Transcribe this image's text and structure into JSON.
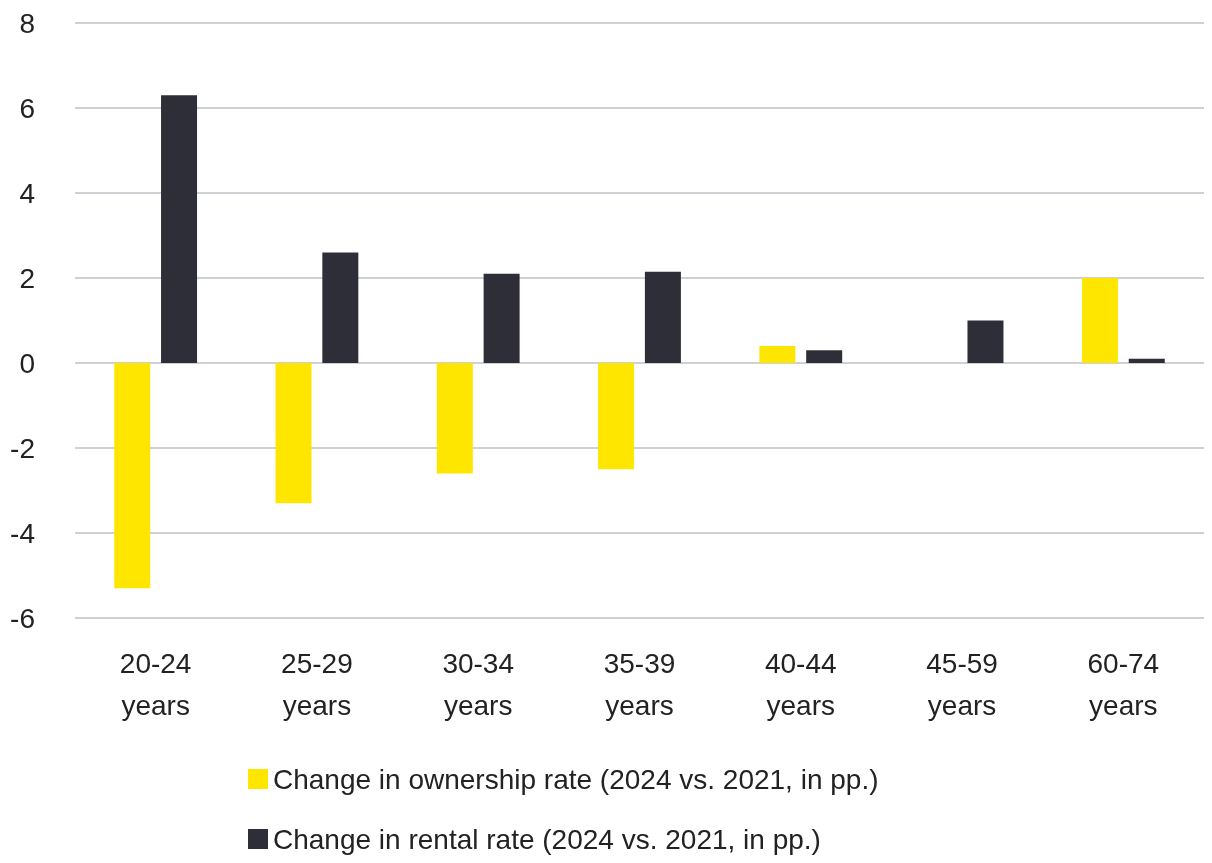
{
  "chart_data": {
    "type": "bar",
    "categories": [
      "20-24\nyears",
      "25-29\nyears",
      "30-34\nyears",
      "35-39\nyears",
      "40-44\nyears",
      "45-59\nyears",
      "60-74\nyears"
    ],
    "series": [
      {
        "name": "Change in ownership rate (2024 vs. 2021, in pp.)",
        "color": "#ffe600",
        "values": [
          -5.3,
          -3.3,
          -2.6,
          -2.5,
          0.4,
          0,
          2.0
        ]
      },
      {
        "name": "Change in rental rate (2024 vs. 2021, in pp.)",
        "color": "#2e2e38",
        "values": [
          6.3,
          2.6,
          2.1,
          2.15,
          0.3,
          1.0,
          0.1
        ]
      }
    ],
    "ylim": [
      -6,
      8
    ],
    "yticks": [
      -6,
      -4,
      -2,
      0,
      2,
      4,
      6,
      8
    ],
    "grid": "y",
    "legend": "bottom"
  }
}
